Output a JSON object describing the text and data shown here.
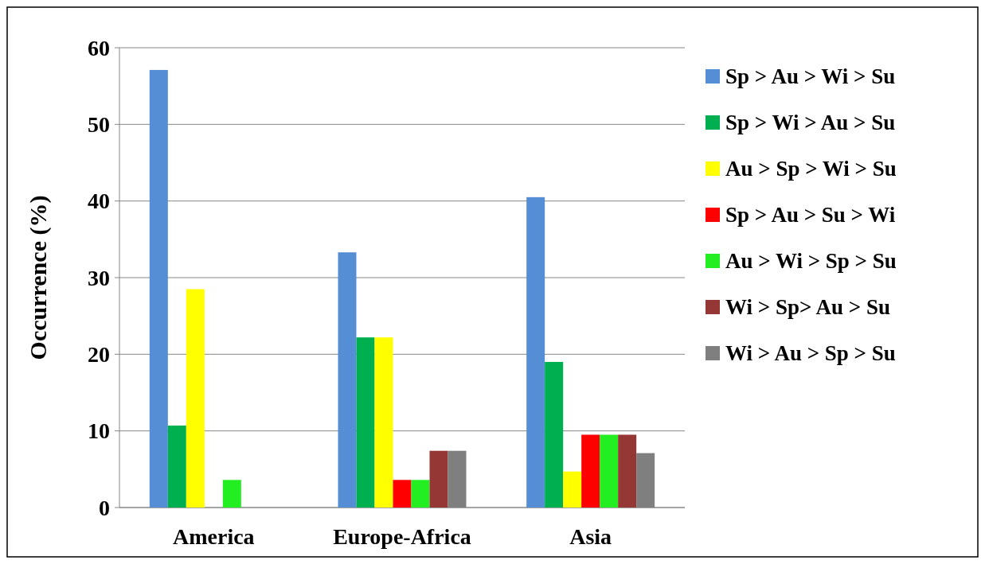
{
  "chart_data": {
    "type": "bar",
    "ylabel": "Occurrence (%)",
    "categories": [
      "America",
      "Europe-Africa",
      "Asia"
    ],
    "series": [
      {
        "name": "Sp > Au > Wi > Su",
        "color": "#558ed5",
        "values": [
          57.1,
          33.3,
          40.5
        ]
      },
      {
        "name": "Sp > Wi > Au > Su",
        "color": "#00b050",
        "values": [
          10.7,
          22.2,
          19.0
        ]
      },
      {
        "name": "Au > Sp > Wi > Su",
        "color": "#ffff00",
        "values": [
          28.5,
          22.2,
          4.7
        ]
      },
      {
        "name": "Sp > Au > Su > Wi",
        "color": "#ff0000",
        "values": [
          0,
          3.6,
          9.5
        ]
      },
      {
        "name": "Au > Wi > Sp > Su",
        "color": "#22ee22",
        "values": [
          3.6,
          3.6,
          9.5
        ]
      },
      {
        "name": "Wi > Sp> Au > Su",
        "color": "#953735",
        "values": [
          0,
          7.4,
          9.5
        ]
      },
      {
        "name": "Wi > Au > Sp > Su",
        "color": "#7f7f7f",
        "values": [
          0,
          7.4,
          7.1
        ]
      }
    ],
    "ylim": [
      0,
      60
    ],
    "yticks": [
      0,
      10,
      20,
      30,
      40,
      50,
      60
    ],
    "grid": "y",
    "legend": "right"
  }
}
